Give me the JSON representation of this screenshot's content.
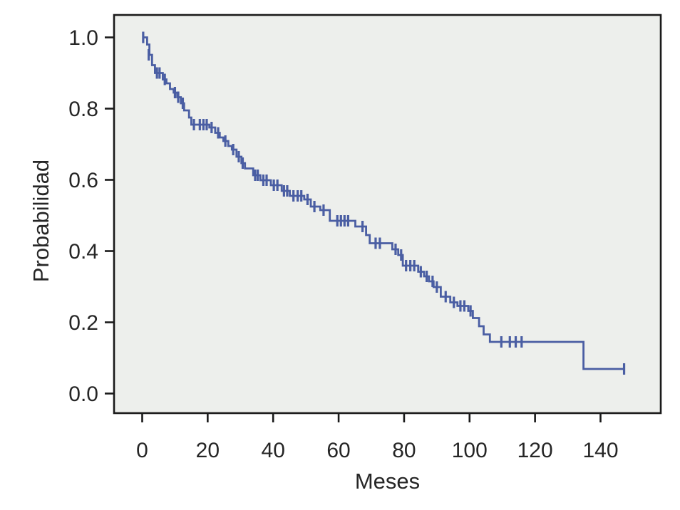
{
  "chart_data": {
    "type": "line",
    "subtype": "kaplan-meier-step-curve",
    "title": "",
    "xlabel": "Meses",
    "ylabel": "Probabilidad",
    "xlim": [
      -8.6,
      158.4
    ],
    "ylim": [
      -0.055,
      1.063
    ],
    "grid": false,
    "legend": false,
    "x_ticks": [
      0,
      20,
      40,
      60,
      80,
      100,
      120,
      140
    ],
    "x_tick_labels": [
      "0",
      "20",
      "40",
      "60",
      "80",
      "100",
      "120",
      "140"
    ],
    "y_ticks": [
      0.0,
      0.2,
      0.4,
      0.6,
      0.8,
      1.0
    ],
    "y_tick_labels": [
      "0.0",
      "0.2",
      "0.4",
      "0.6",
      "0.8",
      "1.0"
    ],
    "series": [
      {
        "steps": [
          [
            0,
            1.0
          ],
          [
            1.5,
            0.98
          ],
          [
            2.2,
            0.951
          ],
          [
            3.0,
            0.922
          ],
          [
            3.9,
            0.9
          ],
          [
            6.3,
            0.882
          ],
          [
            7.4,
            0.871
          ],
          [
            8.5,
            0.855
          ],
          [
            9.6,
            0.845
          ],
          [
            10.7,
            0.832
          ],
          [
            11.8,
            0.815
          ],
          [
            12.8,
            0.795
          ],
          [
            14.3,
            0.775
          ],
          [
            15.0,
            0.755
          ],
          [
            20.5,
            0.747
          ],
          [
            22.3,
            0.732
          ],
          [
            23.7,
            0.719
          ],
          [
            24.8,
            0.709
          ],
          [
            26.3,
            0.695
          ],
          [
            27.4,
            0.685
          ],
          [
            28.8,
            0.665
          ],
          [
            30.3,
            0.647
          ],
          [
            31.4,
            0.632
          ],
          [
            33.9,
            0.613
          ],
          [
            36.1,
            0.599
          ],
          [
            39.3,
            0.585
          ],
          [
            42.6,
            0.569
          ],
          [
            45.1,
            0.555
          ],
          [
            49.5,
            0.545
          ],
          [
            51.5,
            0.525
          ],
          [
            54.4,
            0.515
          ],
          [
            57.3,
            0.485
          ],
          [
            65.1,
            0.469
          ],
          [
            68.4,
            0.445
          ],
          [
            69.5,
            0.422
          ],
          [
            76.4,
            0.405
          ],
          [
            78.2,
            0.389
          ],
          [
            79.6,
            0.359
          ],
          [
            84.3,
            0.342
          ],
          [
            86.1,
            0.329
          ],
          [
            87.6,
            0.315
          ],
          [
            89.0,
            0.299
          ],
          [
            91.2,
            0.272
          ],
          [
            94.1,
            0.256
          ],
          [
            96.3,
            0.246
          ],
          [
            99.6,
            0.232
          ],
          [
            101.0,
            0.212
          ],
          [
            102.9,
            0.189
          ],
          [
            104.3,
            0.166
          ],
          [
            106.2,
            0.145
          ],
          [
            134.8,
            0.069
          ]
        ],
        "end_x": 147.2,
        "censors": [
          [
            0.3,
            1.0
          ],
          [
            2.0,
            0.951
          ],
          [
            4.5,
            0.9
          ],
          [
            5.3,
            0.9
          ],
          [
            6.9,
            0.882
          ],
          [
            10.0,
            0.845
          ],
          [
            11.0,
            0.832
          ],
          [
            12.4,
            0.815
          ],
          [
            15.8,
            0.755
          ],
          [
            17.6,
            0.755
          ],
          [
            18.7,
            0.755
          ],
          [
            19.7,
            0.755
          ],
          [
            21.2,
            0.747
          ],
          [
            23.2,
            0.732
          ],
          [
            25.4,
            0.709
          ],
          [
            27.8,
            0.685
          ],
          [
            29.5,
            0.665
          ],
          [
            30.7,
            0.647
          ],
          [
            34.5,
            0.613
          ],
          [
            35.3,
            0.613
          ],
          [
            37.0,
            0.599
          ],
          [
            38.0,
            0.599
          ],
          [
            40.2,
            0.585
          ],
          [
            41.3,
            0.585
          ],
          [
            43.3,
            0.569
          ],
          [
            44.3,
            0.569
          ],
          [
            46.2,
            0.555
          ],
          [
            47.5,
            0.555
          ],
          [
            48.6,
            0.555
          ],
          [
            50.5,
            0.545
          ],
          [
            52.6,
            0.525
          ],
          [
            55.4,
            0.515
          ],
          [
            59.6,
            0.485
          ],
          [
            60.7,
            0.485
          ],
          [
            61.8,
            0.485
          ],
          [
            62.9,
            0.485
          ],
          [
            67.3,
            0.469
          ],
          [
            71.3,
            0.422
          ],
          [
            72.6,
            0.422
          ],
          [
            77.4,
            0.405
          ],
          [
            79.1,
            0.389
          ],
          [
            80.6,
            0.359
          ],
          [
            81.9,
            0.359
          ],
          [
            83.1,
            0.359
          ],
          [
            85.1,
            0.342
          ],
          [
            86.9,
            0.329
          ],
          [
            88.7,
            0.315
          ],
          [
            90.0,
            0.299
          ],
          [
            92.7,
            0.272
          ],
          [
            95.2,
            0.256
          ],
          [
            97.2,
            0.246
          ],
          [
            98.4,
            0.246
          ],
          [
            100.3,
            0.232
          ],
          [
            109.7,
            0.145
          ],
          [
            112.3,
            0.145
          ],
          [
            114.1,
            0.145
          ],
          [
            115.9,
            0.145
          ],
          [
            147.2,
            0.069
          ]
        ]
      }
    ],
    "colors": {
      "curve": "#4A5EA3",
      "plot_bg": "#EDEFEC",
      "frame": "#1A1A1A",
      "text": "#262626",
      "outer_bg": "#FFFFFF"
    }
  }
}
